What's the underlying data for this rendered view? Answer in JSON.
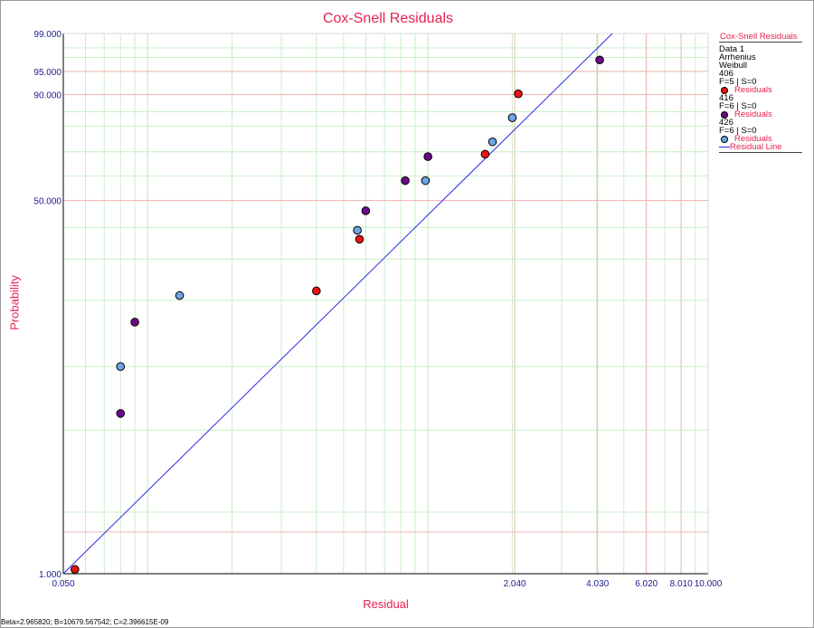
{
  "chart_data": {
    "type": "scatter",
    "title": "Cox-Snell Residuals",
    "xlabel": "Residual",
    "ylabel": "Probability",
    "x_scale": "log",
    "y_scale": "weibull-probability",
    "xlim": [
      0.05,
      10.0
    ],
    "ylim": [
      1.0,
      99.0
    ],
    "x_ticks": [
      "0.050",
      "2.040",
      "4.030",
      "6.020",
      "8.010",
      "10.000"
    ],
    "y_ticks": [
      "1.000",
      "50.000",
      "90.000",
      "95.000",
      "99.000"
    ],
    "grid": true,
    "legend_position": "right",
    "series": [
      {
        "name": "Residuals",
        "group": "406",
        "color": "#ee1111",
        "points": [
          [
            0.055,
            1.05
          ],
          [
            0.4,
            22
          ],
          [
            0.57,
            36
          ],
          [
            1.6,
            69
          ],
          [
            2.1,
            90.2
          ]
        ]
      },
      {
        "name": "Residuals",
        "group": "416",
        "color": "#6a0a8a",
        "points": [
          [
            0.08,
            6
          ],
          [
            0.09,
            16
          ],
          [
            0.6,
            46
          ],
          [
            0.83,
            58
          ],
          [
            1.0,
            68
          ],
          [
            4.1,
            96.7
          ]
        ]
      },
      {
        "name": "Residuals",
        "group": "426",
        "color": "#6aa6e6",
        "points": [
          [
            0.08,
            10
          ],
          [
            0.13,
            21
          ],
          [
            0.56,
            39
          ],
          [
            0.98,
            58
          ],
          [
            1.7,
            74
          ],
          [
            2.0,
            83
          ]
        ]
      }
    ],
    "fit_line": {
      "name": "Residual Line",
      "color": "#2b2be8",
      "points": [
        [
          0.05,
          1.0
        ],
        [
          4.55,
          99.0
        ]
      ]
    }
  },
  "legend": {
    "header": "Cox-Snell Residuals",
    "data_label": "Data 1",
    "model": "Arrhenius",
    "distribution": "Weibull",
    "groups": [
      {
        "name": "406",
        "counts": "F=5 | S=0",
        "entry": "Residuals",
        "color": "#ee1111"
      },
      {
        "name": "416",
        "counts": "F=6 | S=0",
        "entry": "Residuals",
        "color": "#6a0a8a"
      },
      {
        "name": "426",
        "counts": "F=6 | S=0",
        "entry": "Residuals",
        "color": "#6aa6e6"
      }
    ],
    "fit_entry": "Residual Line"
  },
  "status_text": "Beta=2.965820; B=10679.567542; C=2.396615E-09"
}
